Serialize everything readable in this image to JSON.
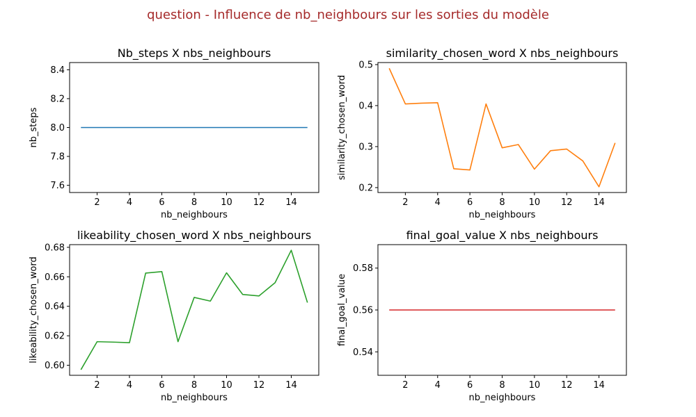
{
  "figure": {
    "suptitle": "question - Influence de nb_neighbours sur les sorties du modèle",
    "suptitle_color": "#a52a2a"
  },
  "chart_data": [
    {
      "type": "line",
      "title": "Nb_steps X nbs_neighbours",
      "xlabel": "nb_neighbours",
      "ylabel": "nb_steps",
      "color": "#1f77b4",
      "x": [
        1,
        2,
        3,
        4,
        5,
        6,
        7,
        8,
        9,
        10,
        11,
        12,
        13,
        14,
        15
      ],
      "y": [
        8,
        8,
        8,
        8,
        8,
        8,
        8,
        8,
        8,
        8,
        8,
        8,
        8,
        8,
        8
      ],
      "xlim": [
        0.3,
        15.7
      ],
      "ylim": [
        7.55,
        8.45
      ],
      "xticks": [
        2,
        4,
        6,
        8,
        10,
        12,
        14
      ],
      "yticks": [
        7.6,
        7.8,
        8.0,
        8.2,
        8.4
      ],
      "ytick_decimals": 1
    },
    {
      "type": "line",
      "title": "similarity_chosen_word X nbs_neighbours",
      "xlabel": "nb_neighbours",
      "ylabel": "similarity_chosen_word",
      "color": "#ff7f0e",
      "x": [
        1,
        2,
        3,
        4,
        5,
        6,
        7,
        8,
        9,
        10,
        11,
        12,
        13,
        14,
        15
      ],
      "y": [
        0.491,
        0.404,
        0.406,
        0.407,
        0.246,
        0.243,
        0.404,
        0.297,
        0.305,
        0.245,
        0.29,
        0.294,
        0.265,
        0.202,
        0.309
      ],
      "xlim": [
        0.3,
        15.7
      ],
      "ylim": [
        0.188,
        0.505
      ],
      "xticks": [
        2,
        4,
        6,
        8,
        10,
        12,
        14
      ],
      "yticks": [
        0.2,
        0.3,
        0.4,
        0.5
      ],
      "ytick_decimals": 1
    },
    {
      "type": "line",
      "title": "likeability_chosen_word X nbs_neighbours",
      "xlabel": "nb_neighbours",
      "ylabel": "likeability_chosen_word",
      "color": "#2ca02c",
      "x": [
        1,
        2,
        3,
        4,
        5,
        6,
        7,
        8,
        9,
        10,
        11,
        12,
        13,
        14,
        15
      ],
      "y": [
        0.597,
        0.616,
        0.6157,
        0.6153,
        0.6625,
        0.6635,
        0.616,
        0.646,
        0.6435,
        0.6627,
        0.648,
        0.647,
        0.656,
        0.678,
        0.6425
      ],
      "xlim": [
        0.3,
        15.7
      ],
      "ylim": [
        0.5932,
        0.6818
      ],
      "xticks": [
        2,
        4,
        6,
        8,
        10,
        12,
        14
      ],
      "yticks": [
        0.6,
        0.62,
        0.64,
        0.66,
        0.68
      ],
      "ytick_decimals": 2
    },
    {
      "type": "line",
      "title": "final_goal_value X nbs_neighbours",
      "xlabel": "nb_neighbours",
      "ylabel": "final_goal_value",
      "color": "#d62728",
      "x": [
        1,
        2,
        3,
        4,
        5,
        6,
        7,
        8,
        9,
        10,
        11,
        12,
        13,
        14,
        15
      ],
      "y": [
        0.56,
        0.56,
        0.56,
        0.56,
        0.56,
        0.56,
        0.56,
        0.56,
        0.56,
        0.56,
        0.56,
        0.56,
        0.56,
        0.56,
        0.56
      ],
      "xlim": [
        0.3,
        15.7
      ],
      "ylim": [
        0.5288,
        0.5912
      ],
      "xticks": [
        2,
        4,
        6,
        8,
        10,
        12,
        14
      ],
      "yticks": [
        0.54,
        0.56,
        0.58
      ],
      "ytick_decimals": 2
    }
  ]
}
